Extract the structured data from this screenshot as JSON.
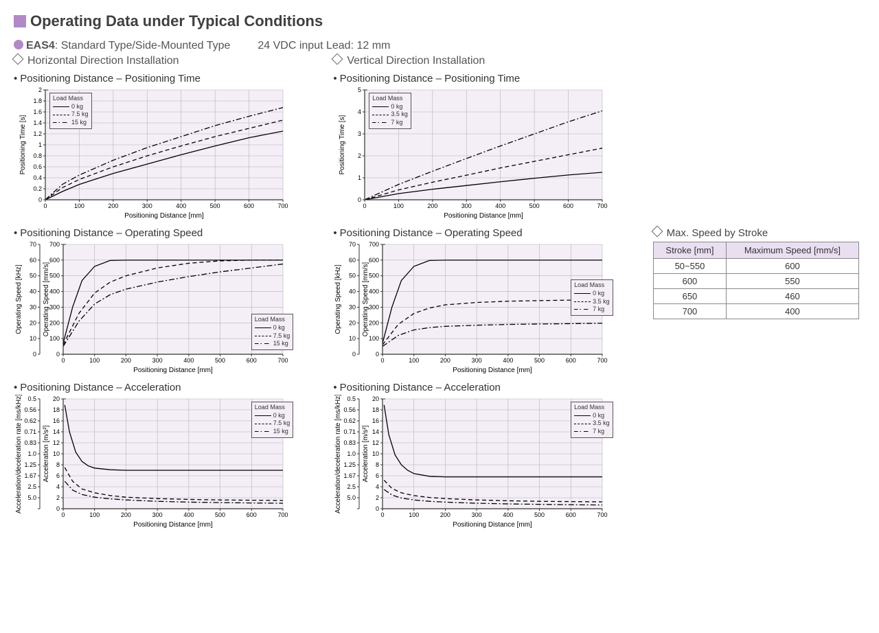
{
  "title": "Operating Data under Typical Conditions",
  "model_line": {
    "model": "EAS4",
    "desc": ": Standard Type/Side-Mounted Type",
    "input": "24 VDC input  Lead: 12 mm"
  },
  "columns": {
    "left_head": "Horizontal Direction Installation",
    "right_head": "Vertical Direction Installation"
  },
  "chart_titles": {
    "pt": "Positioning Distance – Positioning Time",
    "os": "Positioning Distance – Operating Speed",
    "ac": "Positioning Distance – Acceleration"
  },
  "side_table": {
    "title": "Max. Speed by Stroke",
    "headers": [
      "Stroke [mm]",
      "Maximum Speed [mm/s]"
    ],
    "rows": [
      [
        "50~550",
        "600"
      ],
      [
        "600",
        "550"
      ],
      [
        "650",
        "460"
      ],
      [
        "700",
        "400"
      ]
    ]
  },
  "common": {
    "x_label": "Positioning Distance [mm]",
    "x_ticks": [
      0,
      100,
      200,
      300,
      400,
      500,
      600,
      700
    ],
    "x_max": 700,
    "plot_bg": "#f4eef7",
    "grid_color": "#b8b0bd",
    "axis_color": "#333333",
    "font_size_tick": 9,
    "font_size_label": 10
  },
  "charts": {
    "h_pt": {
      "y_label": "Positioning Time [s]",
      "y_ticks": [
        0,
        0.2,
        0.4,
        0.6,
        0.8,
        1.0,
        1.2,
        1.4,
        1.6,
        1.8,
        2.0
      ],
      "y_max": 2.0,
      "legend_title": "Load Mass",
      "legend_pos": "tl",
      "series": [
        {
          "name": "0 kg",
          "style": "solid",
          "pts": [
            [
              0,
              0
            ],
            [
              50,
              0.15
            ],
            [
              100,
              0.28
            ],
            [
              200,
              0.48
            ],
            [
              300,
              0.65
            ],
            [
              400,
              0.82
            ],
            [
              500,
              0.98
            ],
            [
              600,
              1.13
            ],
            [
              700,
              1.25
            ]
          ]
        },
        {
          "name": "7.5 kg",
          "style": "dash",
          "pts": [
            [
              0,
              0
            ],
            [
              50,
              0.22
            ],
            [
              100,
              0.37
            ],
            [
              200,
              0.6
            ],
            [
              300,
              0.8
            ],
            [
              400,
              0.98
            ],
            [
              500,
              1.15
            ],
            [
              600,
              1.3
            ],
            [
              700,
              1.45
            ]
          ]
        },
        {
          "name": "15 kg",
          "style": "dashdot",
          "pts": [
            [
              0,
              0
            ],
            [
              50,
              0.28
            ],
            [
              100,
              0.45
            ],
            [
              200,
              0.72
            ],
            [
              300,
              0.95
            ],
            [
              400,
              1.15
            ],
            [
              500,
              1.35
            ],
            [
              600,
              1.52
            ],
            [
              700,
              1.68
            ]
          ]
        }
      ]
    },
    "v_pt": {
      "y_label": "Positioning Time [s]",
      "y_ticks": [
        0,
        1.0,
        2.0,
        3.0,
        4.0,
        5.0
      ],
      "y_max": 5.0,
      "legend_title": "Load Mass",
      "legend_pos": "tl",
      "series": [
        {
          "name": "0 kg",
          "style": "solid",
          "pts": [
            [
              0,
              0
            ],
            [
              100,
              0.28
            ],
            [
              200,
              0.48
            ],
            [
              300,
              0.65
            ],
            [
              400,
              0.82
            ],
            [
              500,
              0.98
            ],
            [
              600,
              1.13
            ],
            [
              700,
              1.25
            ]
          ]
        },
        {
          "name": "3.5 kg",
          "style": "dash",
          "pts": [
            [
              0,
              0
            ],
            [
              100,
              0.45
            ],
            [
              200,
              0.8
            ],
            [
              300,
              1.12
            ],
            [
              400,
              1.45
            ],
            [
              500,
              1.75
            ],
            [
              600,
              2.05
            ],
            [
              700,
              2.35
            ]
          ]
        },
        {
          "name": "7 kg",
          "style": "dashdot",
          "pts": [
            [
              0,
              0
            ],
            [
              100,
              0.7
            ],
            [
              200,
              1.3
            ],
            [
              300,
              1.88
            ],
            [
              400,
              2.45
            ],
            [
              500,
              3.0
            ],
            [
              600,
              3.55
            ],
            [
              700,
              4.05
            ]
          ]
        }
      ]
    },
    "h_os": {
      "y_label": "Operating Speed [mm/s]",
      "y2_label": "Operating Speed [kHz]",
      "y_ticks": [
        0,
        100,
        200,
        300,
        400,
        500,
        600,
        700
      ],
      "y2_ticks": [
        0,
        10,
        20,
        30,
        40,
        50,
        60,
        70
      ],
      "y_max": 700,
      "legend_title": "Load Mass",
      "legend_pos": "br",
      "series": [
        {
          "name": "0 kg",
          "style": "solid",
          "pts": [
            [
              0,
              70
            ],
            [
              30,
              300
            ],
            [
              60,
              470
            ],
            [
              100,
              560
            ],
            [
              150,
              598
            ],
            [
              200,
              600
            ],
            [
              700,
              600
            ]
          ]
        },
        {
          "name": "7.5 kg",
          "style": "dash",
          "pts": [
            [
              0,
              60
            ],
            [
              50,
              260
            ],
            [
              100,
              390
            ],
            [
              150,
              460
            ],
            [
              200,
              500
            ],
            [
              300,
              550
            ],
            [
              400,
              580
            ],
            [
              500,
              595
            ],
            [
              600,
              600
            ],
            [
              700,
              600
            ]
          ]
        },
        {
          "name": "15 kg",
          "style": "dashdot",
          "pts": [
            [
              0,
              50
            ],
            [
              50,
              210
            ],
            [
              100,
              320
            ],
            [
              150,
              380
            ],
            [
              200,
              415
            ],
            [
              300,
              460
            ],
            [
              400,
              495
            ],
            [
              500,
              525
            ],
            [
              600,
              550
            ],
            [
              700,
              575
            ]
          ]
        }
      ]
    },
    "v_os": {
      "y_label": "Operating Speed [mm/s]",
      "y2_label": "Operating Speed [kHz]",
      "y_ticks": [
        0,
        100,
        200,
        300,
        400,
        500,
        600,
        700
      ],
      "y2_ticks": [
        0,
        10,
        20,
        30,
        40,
        50,
        60,
        70
      ],
      "y_max": 700,
      "legend_title": "Load Mass",
      "legend_pos": "mr",
      "series": [
        {
          "name": "0 kg",
          "style": "solid",
          "pts": [
            [
              0,
              70
            ],
            [
              30,
              300
            ],
            [
              60,
              470
            ],
            [
              100,
              560
            ],
            [
              150,
              598
            ],
            [
              200,
              600
            ],
            [
              700,
              600
            ]
          ]
        },
        {
          "name": "3.5 kg",
          "style": "dash",
          "pts": [
            [
              0,
              60
            ],
            [
              50,
              190
            ],
            [
              100,
              260
            ],
            [
              150,
              295
            ],
            [
              200,
              315
            ],
            [
              300,
              330
            ],
            [
              400,
              338
            ],
            [
              500,
              342
            ],
            [
              600,
              345
            ],
            [
              700,
              348
            ]
          ]
        },
        {
          "name": "7 kg",
          "style": "dashdot",
          "pts": [
            [
              0,
              50
            ],
            [
              50,
              120
            ],
            [
              100,
              155
            ],
            [
              150,
              170
            ],
            [
              200,
              178
            ],
            [
              300,
              185
            ],
            [
              400,
              190
            ],
            [
              500,
              193
            ],
            [
              600,
              195
            ],
            [
              700,
              198
            ]
          ]
        }
      ]
    },
    "h_ac": {
      "y_label": "Acceleration [m/s²]",
      "y2_label": "Acceleration/deceleration rate [ms/kHz]",
      "y_ticks": [
        0,
        2,
        4,
        6,
        8,
        10,
        12,
        14,
        16,
        18,
        20
      ],
      "y2_ticks": [
        " ",
        "5.0",
        "2.5",
        "1.67",
        "1.25",
        "1.0",
        "0.83",
        "0.71",
        "0.62",
        "0.56",
        "0.5"
      ],
      "y_max": 20,
      "legend_title": "Load Mass",
      "legend_pos": "tr",
      "series": [
        {
          "name": "0 kg",
          "style": "solid",
          "pts": [
            [
              5,
              18.9
            ],
            [
              20,
              14
            ],
            [
              40,
              10.3
            ],
            [
              60,
              8.6
            ],
            [
              80,
              7.8
            ],
            [
              100,
              7.4
            ],
            [
              150,
              7.1
            ],
            [
              200,
              7.0
            ],
            [
              700,
              7.0
            ]
          ]
        },
        {
          "name": "7.5 kg",
          "style": "dash",
          "pts": [
            [
              5,
              7.5
            ],
            [
              30,
              5.0
            ],
            [
              60,
              3.6
            ],
            [
              100,
              2.9
            ],
            [
              150,
              2.4
            ],
            [
              200,
              2.1
            ],
            [
              300,
              1.85
            ],
            [
              400,
              1.7
            ],
            [
              500,
              1.6
            ],
            [
              600,
              1.55
            ],
            [
              700,
              1.5
            ]
          ]
        },
        {
          "name": "15 kg",
          "style": "dashdot",
          "pts": [
            [
              5,
              5.0
            ],
            [
              30,
              3.4
            ],
            [
              60,
              2.6
            ],
            [
              100,
              2.1
            ],
            [
              150,
              1.8
            ],
            [
              200,
              1.6
            ],
            [
              300,
              1.35
            ],
            [
              400,
              1.2
            ],
            [
              500,
              1.12
            ],
            [
              600,
              1.05
            ],
            [
              700,
              1.0
            ]
          ]
        }
      ]
    },
    "v_ac": {
      "y_label": "Acceleration [m/s²]",
      "y2_label": "Acceleration/deceleration rate [ms/kHz]",
      "y_ticks": [
        0,
        2,
        4,
        6,
        8,
        10,
        12,
        14,
        16,
        18,
        20
      ],
      "y2_ticks": [
        " ",
        "5.0",
        "2.5",
        "1.67",
        "1.25",
        "1.0",
        "0.83",
        "0.71",
        "0.62",
        "0.56",
        "0.5"
      ],
      "y_max": 20,
      "legend_title": "Load Mass",
      "legend_pos": "tr",
      "series": [
        {
          "name": "0 kg",
          "style": "solid",
          "pts": [
            [
              5,
              18.9
            ],
            [
              20,
              13.5
            ],
            [
              40,
              9.8
            ],
            [
              60,
              8.0
            ],
            [
              80,
              7.0
            ],
            [
              100,
              6.4
            ],
            [
              150,
              5.9
            ],
            [
              200,
              5.8
            ],
            [
              700,
              5.8
            ]
          ]
        },
        {
          "name": "3.5 kg",
          "style": "dash",
          "pts": [
            [
              5,
              5.2
            ],
            [
              30,
              3.7
            ],
            [
              60,
              2.9
            ],
            [
              100,
              2.4
            ],
            [
              150,
              2.05
            ],
            [
              200,
              1.85
            ],
            [
              300,
              1.6
            ],
            [
              400,
              1.45
            ],
            [
              500,
              1.35
            ],
            [
              600,
              1.3
            ],
            [
              700,
              1.25
            ]
          ]
        },
        {
          "name": "7 kg",
          "style": "dashdot",
          "pts": [
            [
              5,
              3.5
            ],
            [
              30,
              2.5
            ],
            [
              60,
              1.95
            ],
            [
              100,
              1.6
            ],
            [
              150,
              1.35
            ],
            [
              200,
              1.2
            ],
            [
              300,
              1.0
            ],
            [
              400,
              0.88
            ],
            [
              500,
              0.8
            ],
            [
              600,
              0.73
            ],
            [
              700,
              0.68
            ]
          ]
        }
      ]
    }
  }
}
